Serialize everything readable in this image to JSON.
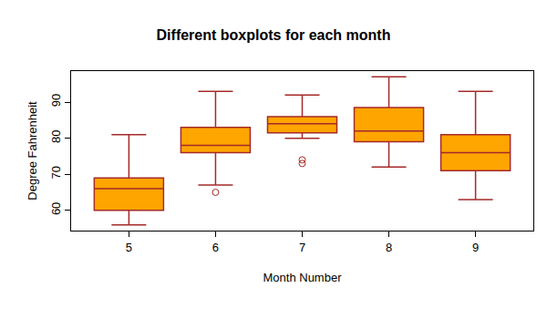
{
  "chart_data": {
    "type": "box",
    "title": "Different boxplots for each month",
    "x_label": "Month Number",
    "y_label": "Degree Fahrenheit",
    "categories": [
      "5",
      "6",
      "7",
      "8",
      "9"
    ],
    "lower_whisker": [
      56,
      67,
      80,
      72,
      63
    ],
    "q1": [
      60,
      76,
      81.5,
      79,
      71
    ],
    "median": [
      66,
      78,
      84,
      82,
      76
    ],
    "q3": [
      69,
      83,
      86,
      88.5,
      81
    ],
    "upper_whisker": [
      81,
      93,
      92,
      97,
      93
    ],
    "outliers": [
      [],
      [
        65
      ],
      [
        73,
        74
      ],
      [],
      []
    ],
    "color": "orange",
    "ylim": [
      54.4,
      98.6
    ],
    "yticks": [
      60,
      70,
      80,
      90
    ],
    "grid": false
  }
}
